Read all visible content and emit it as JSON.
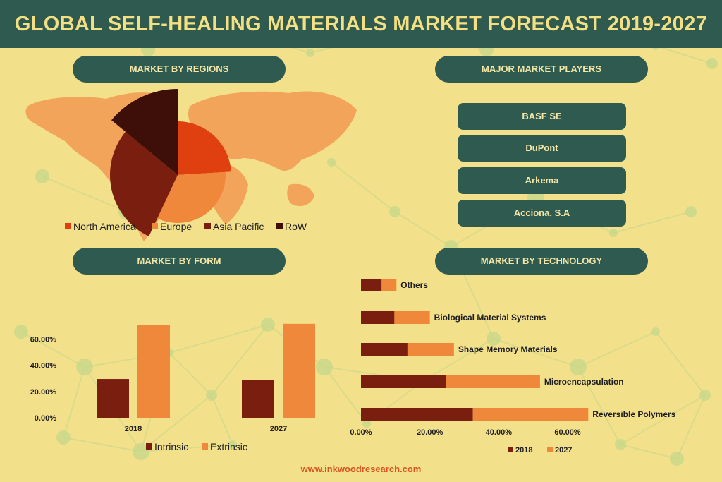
{
  "title": "GLOBAL SELF-HEALING MATERIALS MARKET FORECAST 2019-2027",
  "sections": {
    "regions": "MARKET BY REGIONS",
    "players": "MAJOR MARKET PLAYERS",
    "form": "MARKET BY FORM",
    "technology": "MARKET BY TECHNOLOGY"
  },
  "players": [
    "BASF SE",
    "DuPont",
    "Arkema",
    "Acciona, S.A"
  ],
  "footer": "www.inkwoodresearch.com",
  "colors": {
    "banner": "#2e5a4f",
    "background": "#f3e08a",
    "map": "#f2a55a",
    "north_america": "#e0400f",
    "europe": "#f0883c",
    "asia_pacific": "#7a1f0f",
    "row": "#3d0f08",
    "intrinsic": "#7a1f0f",
    "extrinsic": "#f0883c"
  },
  "chart_data": [
    {
      "type": "pie",
      "labels": [
        "North America",
        "Europe",
        "Asia Pacific",
        "RoW"
      ],
      "values": [
        24,
        33,
        29,
        14
      ],
      "legend": "bottom"
    },
    {
      "type": "bar",
      "categories": [
        "2018",
        "2027"
      ],
      "series": [
        {
          "name": "Intrinsic",
          "values": [
            29.5,
            28.5
          ]
        },
        {
          "name": "Extrinsic",
          "values": [
            70.5,
            71.5
          ]
        }
      ],
      "yticks": [
        "0.00%",
        "20.00%",
        "40.00%",
        "60.00%"
      ],
      "ylim": [
        0,
        80
      ],
      "legend": "bottom"
    },
    {
      "type": "bar",
      "orientation": "horizontal",
      "categories": [
        "Reversible Polymers",
        "Microencapsulation",
        "Shape Memory Materials",
        "Biological Material Systems",
        "Others"
      ],
      "series": [
        {
          "name": "2018",
          "values": [
            32.5,
            24.7,
            13.5,
            9.7,
            6.0
          ]
        },
        {
          "name": "2027",
          "values": [
            33.5,
            27.3,
            13.5,
            10.3,
            4.3
          ]
        }
      ],
      "xticks": [
        "0.00%",
        "20.00%",
        "40.00%",
        "60.00%"
      ],
      "xlim": [
        0,
        60
      ],
      "legend": "bottom"
    }
  ]
}
